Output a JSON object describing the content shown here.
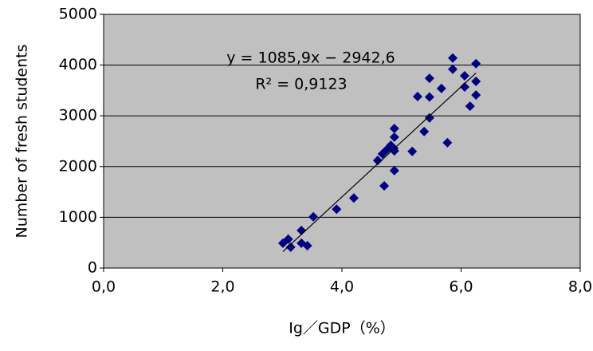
{
  "chart_data": {
    "type": "scatter",
    "x_label": "Ig／GDP（%）",
    "y_label": "Number of fresh students",
    "series": [
      {
        "color": "#000080",
        "x": [
          3.01,
          3.1,
          3.14,
          3.32,
          3.32,
          3.42,
          3.52,
          3.91,
          4.2,
          4.6,
          4.68,
          4.71,
          4.76,
          4.82,
          4.87,
          4.88,
          4.88,
          4.88,
          4.88,
          5.18,
          5.27,
          5.38,
          5.47,
          5.47,
          5.47,
          5.67,
          5.77,
          5.86,
          5.86,
          6.06,
          6.06,
          6.15,
          6.25,
          6.25,
          6.25
        ],
        "values": [
          490,
          570,
          410,
          740,
          490,
          440,
          1010,
          1160,
          1380,
          2120,
          2250,
          1620,
          2340,
          2420,
          2360,
          2750,
          2580,
          2310,
          1920,
          2300,
          3380,
          2690,
          3370,
          3740,
          2960,
          3540,
          2470,
          4140,
          3920,
          3790,
          3570,
          3190,
          4030,
          3680,
          3410
        ]
      }
    ],
    "trendline": {
      "slope": 1085.9,
      "intercept": -2942.6,
      "equation": "y = 1085,9x − 2942,6",
      "r_squared": "R² = 0,9123"
    },
    "xlim": [
      0,
      8
    ],
    "xticks": [
      {
        "value": 0,
        "label": "0,0"
      },
      {
        "value": 2,
        "label": "2,0"
      },
      {
        "value": 4,
        "label": "4,0"
      },
      {
        "value": 6,
        "label": "6,0"
      },
      {
        "value": 8,
        "label": "8,0"
      }
    ],
    "ylim": [
      0,
      5000
    ],
    "yticks": [
      0,
      1000,
      2000,
      3000,
      4000,
      5000
    ],
    "grid": true,
    "background": "#c0c0c0"
  }
}
